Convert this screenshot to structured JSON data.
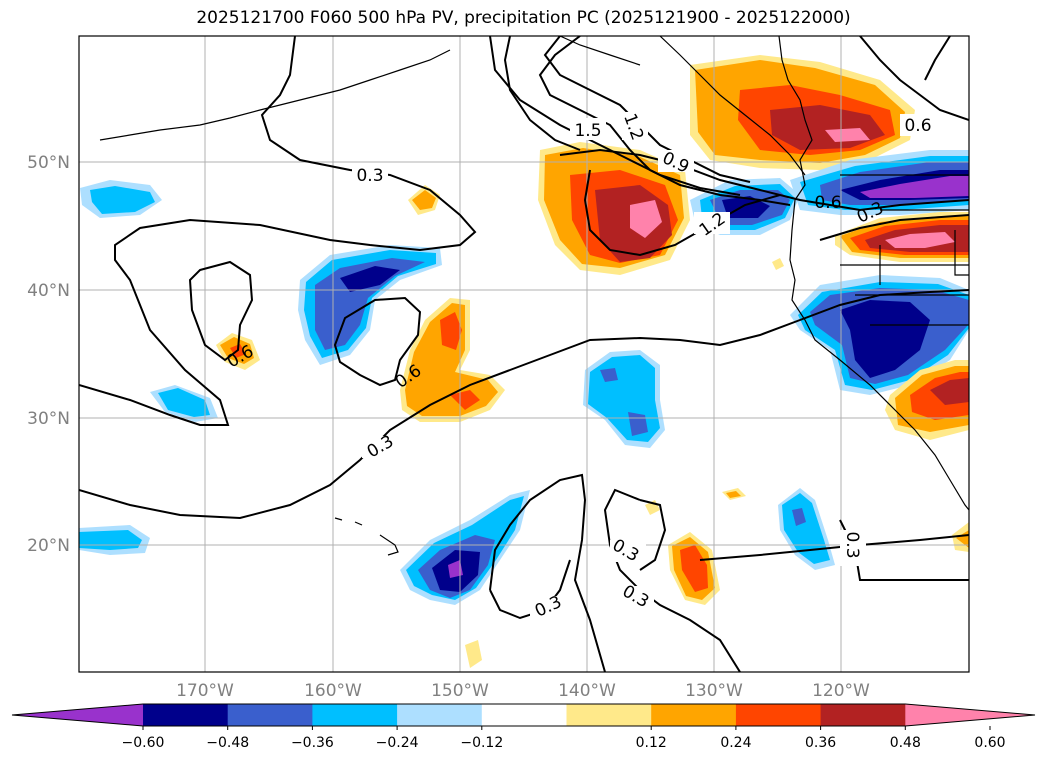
{
  "title": "2025121700 F060 500 hPa PV, precipitation PC (2025121900 - 2025122000)",
  "lat_labels": [
    "50°N",
    "40°N",
    "30°N",
    "20°N"
  ],
  "lon_labels": [
    "170°W",
    "160°W",
    "150°W",
    "140°W",
    "130°W",
    "120°W"
  ],
  "contour_labels": [
    "1.5",
    "1.2",
    "0.9",
    "1.2",
    "0.6",
    "0.6",
    "0.3",
    "0.3",
    "0.6",
    "0.6",
    "0.3",
    "0.3",
    "0.3",
    "0.3",
    "0.3"
  ],
  "colorbar": {
    "ticks": [
      "−0.60",
      "−0.48",
      "−0.36",
      "−0.24",
      "−0.12",
      "0.12",
      "0.24",
      "0.36",
      "0.48",
      "0.60"
    ],
    "colors": [
      "#9932CC",
      "#00008B",
      "#3A5FCD",
      "#00BFFF",
      "#ADDFFF",
      "#FFFFFF",
      "#FFE98A",
      "#FFA500",
      "#FF4500",
      "#B22222",
      "#FF82AB"
    ]
  },
  "colors": {
    "axis_label": "#808080",
    "grid": "#b0b0b0",
    "coast": "#000000",
    "contour": "#000000"
  }
}
